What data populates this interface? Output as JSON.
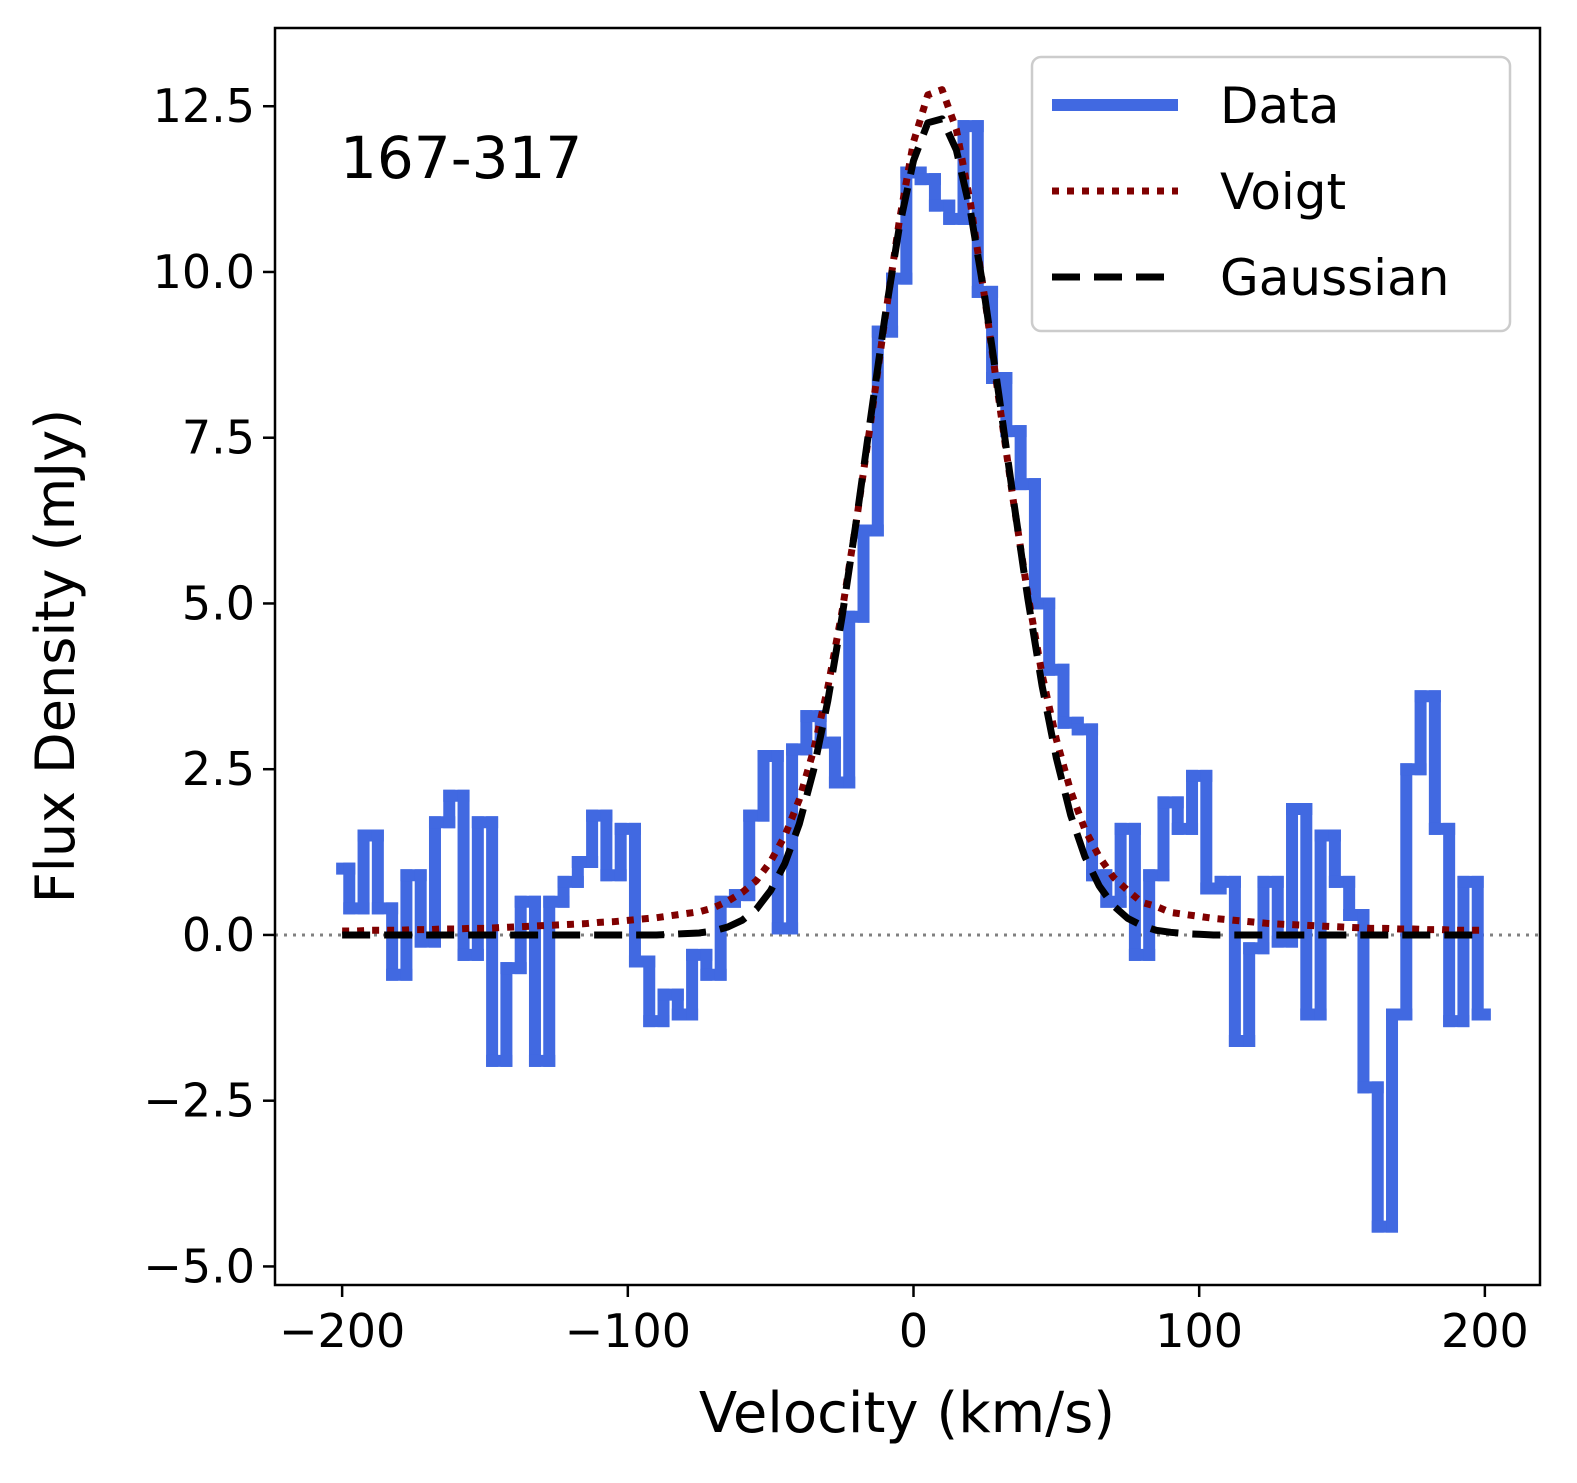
{
  "chart_data": {
    "type": "line",
    "annotation": "167-317",
    "xlabel": "Velocity (km/s)",
    "ylabel": "Flux Density (mJy)",
    "x": [
      -200,
      -195,
      -190,
      -185,
      -180,
      -175,
      -170,
      -165,
      -160,
      -155,
      -150,
      -145,
      -140,
      -135,
      -130,
      -125,
      -120,
      -115,
      -110,
      -105,
      -100,
      -95,
      -90,
      -85,
      -80,
      -75,
      -70,
      -65,
      -60,
      -55,
      -50,
      -45,
      -40,
      -35,
      -30,
      -25,
      -20,
      -15,
      -10,
      -5,
      0,
      5,
      10,
      15,
      20,
      25,
      30,
      35,
      40,
      45,
      50,
      55,
      60,
      65,
      70,
      75,
      80,
      85,
      90,
      95,
      100,
      105,
      110,
      115,
      120,
      125,
      130,
      135,
      140,
      145,
      150,
      155,
      160,
      165,
      170,
      175,
      180,
      185,
      190,
      195,
      200
    ],
    "series": [
      {
        "name": "Data",
        "color": "#4169e1",
        "style": "steps-mid",
        "values": [
          1.0,
          0.4,
          1.5,
          0.4,
          -0.6,
          0.9,
          -0.1,
          1.7,
          2.1,
          -0.3,
          1.7,
          -1.9,
          -0.5,
          0.5,
          -1.9,
          0.5,
          0.8,
          1.1,
          1.8,
          0.9,
          1.6,
          -0.4,
          -1.3,
          -0.9,
          -1.2,
          -0.3,
          -0.6,
          0.5,
          0.6,
          1.8,
          2.7,
          0.1,
          2.8,
          3.3,
          2.9,
          2.3,
          4.8,
          6.1,
          9.1,
          9.9,
          11.5,
          11.4,
          11.0,
          10.8,
          12.2,
          9.7,
          8.4,
          7.6,
          6.8,
          5.0,
          4.0,
          3.2,
          3.1,
          0.9,
          0.5,
          1.6,
          -0.3,
          0.9,
          2.0,
          1.6,
          2.4,
          0.7,
          0.8,
          -1.6,
          -0.2,
          0.8,
          -0.1,
          1.9,
          -1.2,
          1.5,
          0.8,
          0.3,
          -2.3,
          -4.4,
          -1.2,
          2.5,
          3.6,
          1.6,
          -1.3,
          0.8,
          -1.2
        ]
      },
      {
        "name": "Voigt",
        "color": "#800000",
        "style": "dotted",
        "values": [
          0.06,
          0.06,
          0.07,
          0.07,
          0.07,
          0.08,
          0.08,
          0.09,
          0.09,
          0.1,
          0.1,
          0.11,
          0.12,
          0.13,
          0.14,
          0.15,
          0.16,
          0.17,
          0.19,
          0.2,
          0.22,
          0.24,
          0.26,
          0.29,
          0.32,
          0.35,
          0.41,
          0.51,
          0.64,
          0.82,
          1.11,
          1.5,
          2.04,
          2.78,
          3.73,
          4.88,
          6.24,
          7.73,
          9.29,
          10.76,
          11.96,
          12.67,
          12.75,
          12.15,
          11.02,
          9.59,
          8.04,
          6.53,
          5.14,
          3.93,
          2.95,
          2.17,
          1.59,
          1.18,
          0.87,
          0.67,
          0.49,
          0.43,
          0.34,
          0.31,
          0.28,
          0.25,
          0.23,
          0.21,
          0.19,
          0.17,
          0.16,
          0.15,
          0.14,
          0.13,
          0.12,
          0.11,
          0.1,
          0.1,
          0.09,
          0.09,
          0.08,
          0.08,
          0.07,
          0.07,
          0.07
        ]
      },
      {
        "name": "Gaussian",
        "color": "#000000",
        "style": "dashed",
        "values": [
          0,
          0,
          0,
          0,
          0,
          0,
          0,
          0,
          0,
          0,
          0,
          0,
          0,
          0,
          0,
          0,
          0,
          0,
          0,
          0,
          0,
          0,
          0,
          0.01,
          0.02,
          0.03,
          0.06,
          0.12,
          0.22,
          0.39,
          0.67,
          1.08,
          1.67,
          2.48,
          3.53,
          4.8,
          6.25,
          7.8,
          9.32,
          10.67,
          11.68,
          12.25,
          12.31,
          11.84,
          10.9,
          9.61,
          8.11,
          6.56,
          5.08,
          3.76,
          2.67,
          1.81,
          1.18,
          0.74,
          0.44,
          0.25,
          0.14,
          0.07,
          0.04,
          0.02,
          0.01,
          0,
          0,
          0,
          0,
          0,
          0,
          0,
          0,
          0,
          0,
          0,
          0,
          0,
          0,
          0,
          0,
          0,
          0,
          0,
          0
        ]
      }
    ],
    "hline": 0,
    "xlim": [
      -223.5,
      219.3
    ],
    "ylim": [
      -5.28,
      13.68
    ],
    "xticks": [
      {
        "value": -200,
        "label": "−200"
      },
      {
        "value": -100,
        "label": "−100"
      },
      0,
      100,
      200
    ],
    "yticks": [
      {
        "value": -5,
        "label": "−5.0"
      },
      {
        "value": -2.5,
        "label": "−2.5"
      },
      {
        "value": 0,
        "label": "0.0"
      },
      2.5,
      {
        "value": 5,
        "label": "5.0"
      },
      7.5,
      {
        "value": 10,
        "label": "10.0"
      },
      12.5
    ],
    "grid": false,
    "legend": "upper right"
  }
}
